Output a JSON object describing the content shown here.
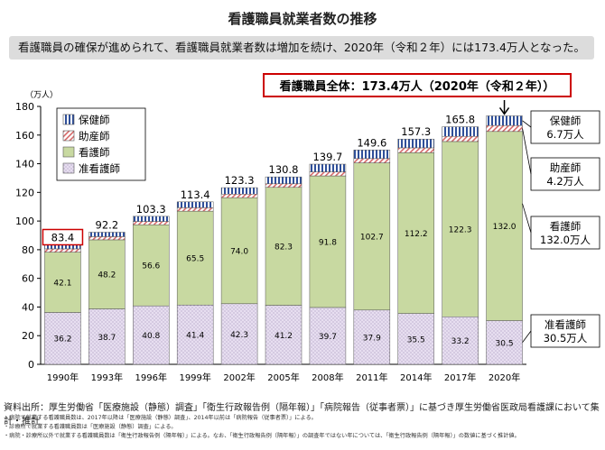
{
  "header": {
    "title": "看護職員就業者数の推移",
    "subtitle": "看護職員の確保が進められて、看護職員就業者数は増加を続け、2020年（令和２年）には173.4万人となった。"
  },
  "chart_data": {
    "type": "bar",
    "stacked": true,
    "ylabel": "（万人）",
    "ylim": [
      0,
      180
    ],
    "yticks": [
      0,
      20,
      40,
      60,
      80,
      100,
      120,
      140,
      160,
      180
    ],
    "grid": false,
    "categories": [
      "1990年",
      "1993年",
      "1996年",
      "1999年",
      "2002年",
      "2005年",
      "2008年",
      "2011年",
      "2014年",
      "2017年",
      "2020年"
    ],
    "series": [
      {
        "name": "准看護師",
        "key": "jun",
        "color": "#d9cde6",
        "values": [
          36.2,
          38.7,
          40.8,
          41.4,
          42.3,
          41.2,
          39.7,
          37.9,
          35.5,
          33.2,
          30.5
        ]
      },
      {
        "name": "看護師",
        "key": "kan",
        "color": "#c8d9a1",
        "values": [
          42.1,
          48.2,
          56.6,
          65.5,
          74.0,
          82.3,
          91.8,
          102.7,
          112.2,
          122.3,
          132.0
        ]
      },
      {
        "name": "助産師",
        "key": "jo",
        "color": "#eec4c4",
        "values": [
          2.3,
          2.2,
          2.3,
          2.4,
          2.5,
          2.5,
          2.8,
          3.0,
          3.4,
          3.6,
          4.2
        ]
      },
      {
        "name": "保健師",
        "key": "ho",
        "color": "#8ea7d6",
        "values": [
          2.8,
          3.1,
          3.6,
          4.1,
          4.5,
          4.8,
          5.4,
          6.0,
          6.1,
          6.7,
          6.7
        ]
      }
    ],
    "totals": [
      "83.4",
      "92.2",
      "103.3",
      "113.4",
      "123.3",
      "130.8",
      "139.7",
      "149.6",
      "157.3",
      "165.8",
      ""
    ],
    "legend": {
      "placement": "top-left",
      "items": [
        "保健師",
        "助産師",
        "看護師",
        "准看護師"
      ]
    },
    "highlight_total": "看護職員全体：173.4万人（2020年（令和２年））",
    "callouts": [
      {
        "key": "ho",
        "line1": "保健師",
        "line2": "6.7万人"
      },
      {
        "key": "jo",
        "line1": "助産師",
        "line2": "4.2万人"
      },
      {
        "key": "kan",
        "line1": "看護師",
        "line2": "132.0万人"
      },
      {
        "key": "jun",
        "line1": "准看護師",
        "line2": "30.5万人"
      }
    ],
    "colors": {
      "highlight_border": "#cc0000",
      "axis": "#000000"
    }
  },
  "footer": {
    "source": "資料出所：厚生労働省「医療施設（静態）調査」「衛生行政報告例（隔年報）」「病院報告（従事者票）」に基づき厚生労働省医政局看護課において集計・推計",
    "notes": [
      "・病院で就業する看護職員数は、2017年以降は「医療施設（静態）調査」、2014年以前は「病院報告（従事者票）」による。",
      "・診療所で就業する看護職員数は「医療施設（静態）調査」による。",
      "・病院・診療所以外で就業する看護職員数は「衛生行政報告例（隔年報）」による。なお、「衛生行政報告例（隔年報）」の調査年ではない年については、「衛生行政報告例（隔年報）」の数値に基づく推計値。"
    ]
  }
}
